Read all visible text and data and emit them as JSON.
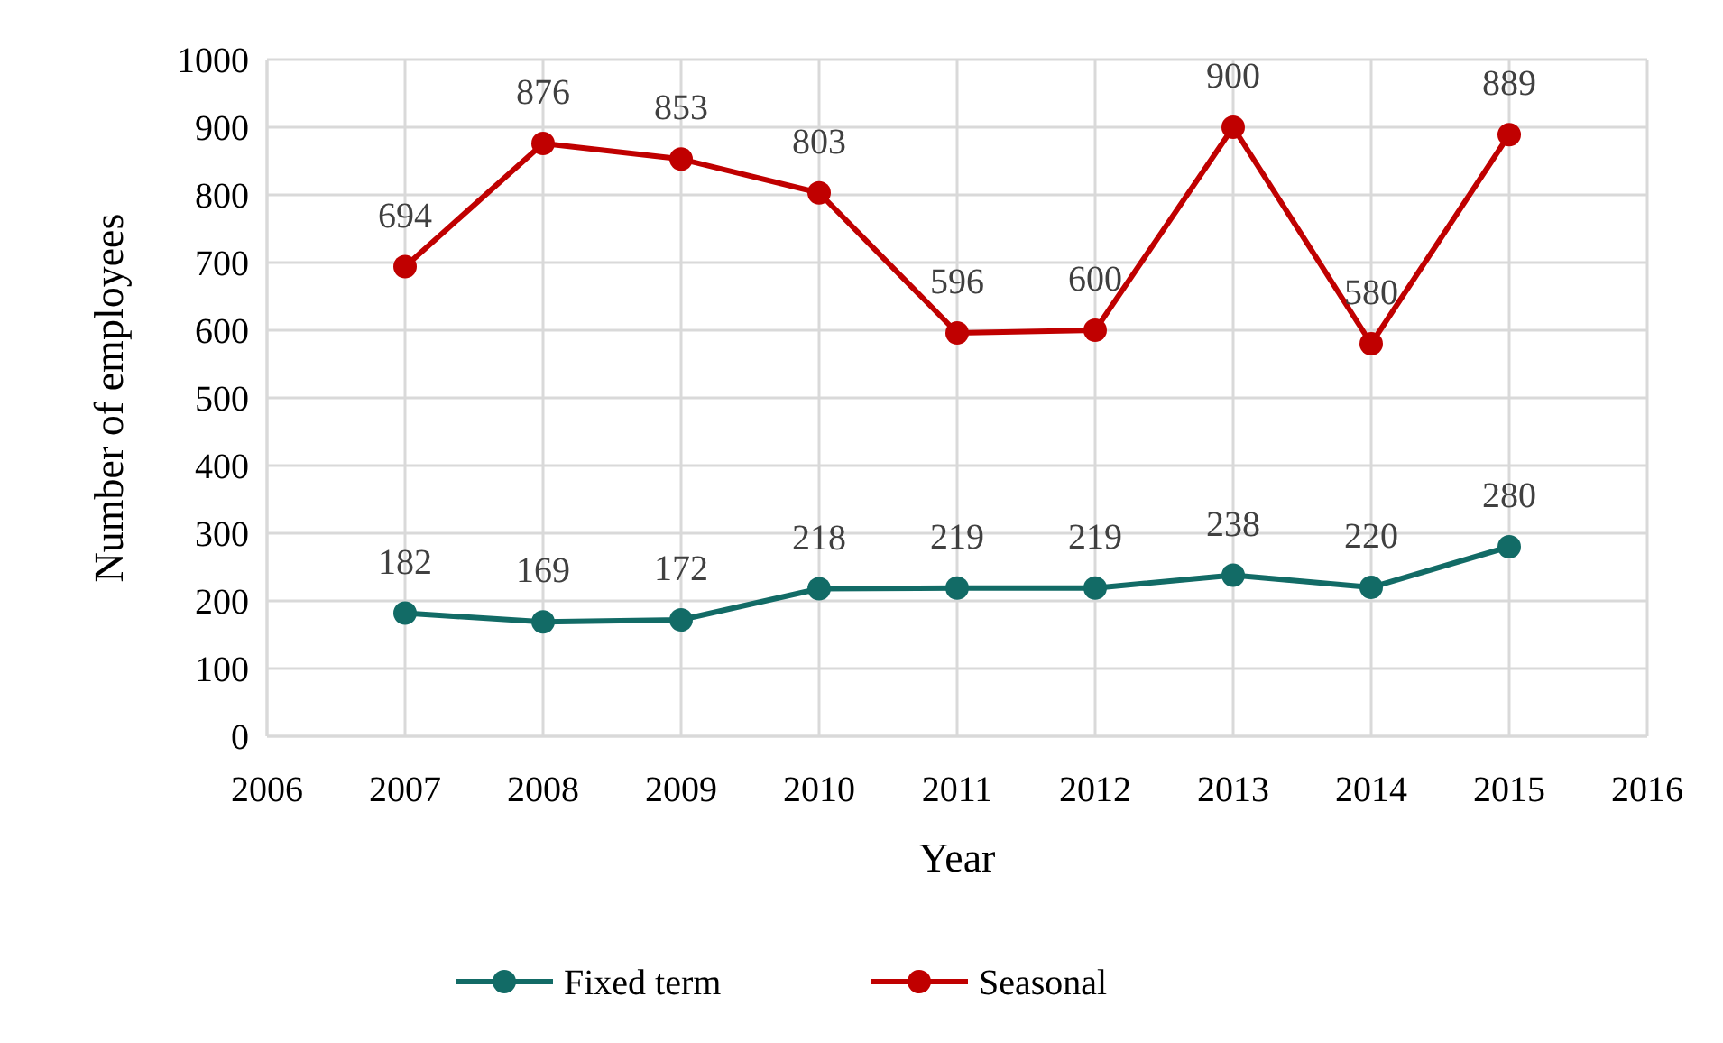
{
  "chart_data": {
    "type": "line",
    "xlabel": "Year",
    "ylabel": "Number of employees",
    "x": [
      2007,
      2008,
      2009,
      2010,
      2011,
      2012,
      2013,
      2014,
      2015
    ],
    "series": [
      {
        "name": "Fixed term",
        "color": "#126b66",
        "values": [
          182,
          169,
          172,
          218,
          219,
          219,
          238,
          220,
          280
        ]
      },
      {
        "name": "Seasonal",
        "color": "#c00000",
        "values": [
          694,
          876,
          853,
          803,
          596,
          600,
          900,
          580,
          889
        ]
      }
    ],
    "xlim": [
      2006,
      2016
    ],
    "xticks": [
      2006,
      2007,
      2008,
      2009,
      2010,
      2011,
      2012,
      2013,
      2014,
      2015,
      2016
    ],
    "ylim": [
      0,
      1000
    ],
    "yticks": [
      0,
      100,
      200,
      300,
      400,
      500,
      600,
      700,
      800,
      900,
      1000
    ],
    "grid": true,
    "legend": "bottom",
    "marker": "circle",
    "line_style": "solid",
    "data_labels": true
  }
}
